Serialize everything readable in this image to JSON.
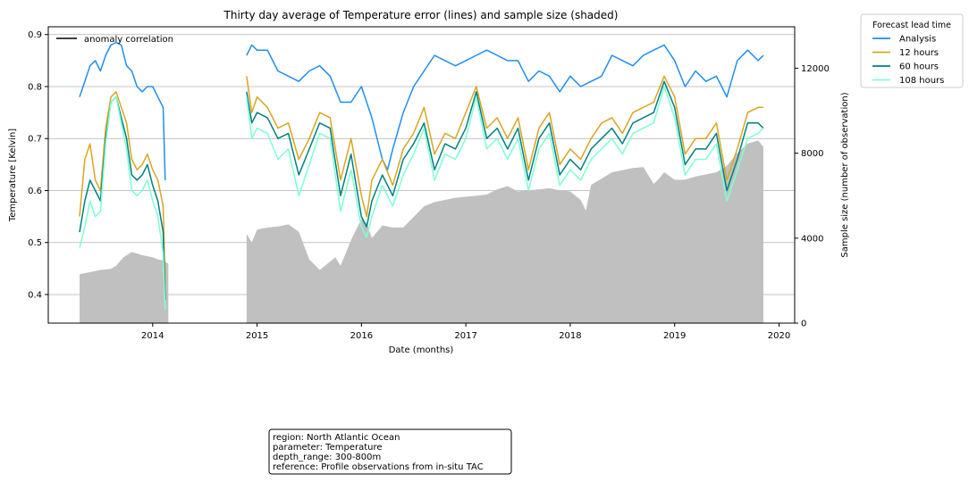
{
  "chart_data": {
    "type": "line",
    "title": "Thirty day average of Temperature error (lines) and sample size (shaded)",
    "xlabel": "Date (months)",
    "ylabel": "Temperature [Kelvin]",
    "y2label": "Sample size (number of observation)",
    "xlim": [
      2013.0,
      2020.15
    ],
    "ylim": [
      0.345,
      0.915
    ],
    "y2lim": [
      0,
      13950
    ],
    "x_ticks": [
      2014,
      2015,
      2016,
      2017,
      2018,
      2019,
      2020
    ],
    "x_tick_labels": [
      "2014",
      "2015",
      "2016",
      "2017",
      "2018",
      "2019",
      "2020"
    ],
    "y_ticks": [
      0.4,
      0.5,
      0.6,
      0.7,
      0.8,
      0.9
    ],
    "y_tick_labels": [
      "0.4",
      "0.5",
      "0.6",
      "0.7",
      "0.8",
      "0.9"
    ],
    "y2_ticks": [
      0,
      4000,
      8000,
      12000
    ],
    "y2_tick_labels": [
      "0",
      "4000",
      "8000",
      "12000"
    ],
    "grid": "horizontal",
    "legend_title": "Forecast lead time",
    "legend_position": "outside-top-right",
    "inner_legend": {
      "label": "anomaly correlation",
      "color": "#000000",
      "position": "top-left"
    },
    "sample_size": {
      "name": "Sample size (shaded)",
      "color": "#c0c0c0",
      "segments": [
        {
          "x": [
            2013.3,
            2013.4,
            2013.5,
            2013.6,
            2013.65,
            2013.72,
            2013.8,
            2013.9,
            2014.0,
            2014.05,
            2014.1,
            2014.15
          ],
          "values": [
            2300,
            2400,
            2500,
            2550,
            2700,
            3100,
            3350,
            3200,
            3100,
            3000,
            2950,
            2800
          ]
        },
        {
          "x": [
            2014.9,
            2014.95,
            2015.0,
            2015.1,
            2015.2,
            2015.3,
            2015.4,
            2015.5,
            2015.6,
            2015.7,
            2015.75,
            2015.8,
            2015.9,
            2016.0,
            2016.05,
            2016.1,
            2016.2,
            2016.3,
            2016.4,
            2016.5,
            2016.6,
            2016.7,
            2016.8,
            2016.9,
            2017.0,
            2017.1,
            2017.2,
            2017.3,
            2017.4,
            2017.5,
            2017.6,
            2017.7,
            2017.8,
            2017.9,
            2018.0,
            2018.1,
            2018.15,
            2018.2,
            2018.3,
            2018.4,
            2018.5,
            2018.6,
            2018.7,
            2018.8,
            2018.85,
            2018.9,
            2019.0,
            2019.1,
            2019.2,
            2019.3,
            2019.4,
            2019.5,
            2019.6,
            2019.7,
            2019.8,
            2019.85
          ],
          "values": [
            4200,
            3800,
            4400,
            4500,
            4550,
            4650,
            4300,
            3000,
            2500,
            2900,
            3100,
            2700,
            3900,
            4900,
            4700,
            4000,
            4600,
            4500,
            4500,
            5000,
            5500,
            5700,
            5800,
            5900,
            5950,
            6000,
            6050,
            6300,
            6450,
            6200,
            6250,
            6300,
            6350,
            6250,
            6200,
            5800,
            5300,
            6500,
            6800,
            7100,
            7200,
            7300,
            7350,
            6550,
            6800,
            7100,
            6750,
            6750,
            6900,
            7000,
            7100,
            7400,
            8000,
            8450,
            8600,
            8300
          ]
        }
      ]
    },
    "series": [
      {
        "name": "Analysis",
        "color": "#1f8ef1",
        "segments": [
          {
            "x": [
              2013.3,
              2013.35,
              2013.4,
              2013.45,
              2013.5,
              2013.55,
              2013.6,
              2013.65,
              2013.7,
              2013.75,
              2013.8,
              2013.85,
              2013.9,
              2013.95,
              2014.0,
              2014.05,
              2014.1,
              2014.12
            ],
            "values": [
              0.78,
              0.81,
              0.84,
              0.85,
              0.83,
              0.86,
              0.88,
              0.885,
              0.88,
              0.84,
              0.83,
              0.8,
              0.79,
              0.8,
              0.8,
              0.78,
              0.76,
              0.62
            ]
          },
          {
            "x": [
              2014.9,
              2014.95,
              2015.0,
              2015.1,
              2015.2,
              2015.3,
              2015.4,
              2015.5,
              2015.6,
              2015.7,
              2015.8,
              2015.9,
              2016.0,
              2016.1,
              2016.2,
              2016.25,
              2016.3,
              2016.4,
              2016.5,
              2016.6,
              2016.7,
              2016.8,
              2016.9,
              2017.0,
              2017.1,
              2017.2,
              2017.3,
              2017.4,
              2017.5,
              2017.6,
              2017.7,
              2017.8,
              2017.9,
              2018.0,
              2018.1,
              2018.2,
              2018.3,
              2018.4,
              2018.5,
              2018.6,
              2018.7,
              2018.8,
              2018.9,
              2019.0,
              2019.1,
              2019.2,
              2019.3,
              2019.4,
              2019.5,
              2019.6,
              2019.7,
              2019.8,
              2019.85
            ],
            "values": [
              0.86,
              0.88,
              0.87,
              0.87,
              0.83,
              0.82,
              0.81,
              0.83,
              0.84,
              0.82,
              0.77,
              0.77,
              0.8,
              0.74,
              0.66,
              0.64,
              0.68,
              0.75,
              0.8,
              0.83,
              0.86,
              0.85,
              0.84,
              0.85,
              0.86,
              0.87,
              0.86,
              0.85,
              0.85,
              0.81,
              0.83,
              0.82,
              0.79,
              0.82,
              0.8,
              0.81,
              0.82,
              0.86,
              0.85,
              0.84,
              0.86,
              0.87,
              0.88,
              0.85,
              0.8,
              0.83,
              0.81,
              0.82,
              0.78,
              0.85,
              0.87,
              0.85,
              0.86
            ]
          }
        ]
      },
      {
        "name": "12 hours",
        "color": "#daa520",
        "segments": [
          {
            "x": [
              2013.3,
              2013.35,
              2013.4,
              2013.45,
              2013.5,
              2013.55,
              2013.6,
              2013.65,
              2013.7,
              2013.75,
              2013.8,
              2013.85,
              2013.9,
              2013.95,
              2014.0,
              2014.05,
              2014.1,
              2014.12
            ],
            "values": [
              0.55,
              0.66,
              0.69,
              0.62,
              0.6,
              0.72,
              0.78,
              0.79,
              0.76,
              0.73,
              0.66,
              0.64,
              0.65,
              0.67,
              0.64,
              0.62,
              0.57,
              0.42
            ]
          },
          {
            "x": [
              2014.9,
              2014.95,
              2015.0,
              2015.1,
              2015.2,
              2015.3,
              2015.4,
              2015.5,
              2015.6,
              2015.7,
              2015.8,
              2015.9,
              2016.0,
              2016.05,
              2016.1,
              2016.2,
              2016.3,
              2016.4,
              2016.5,
              2016.6,
              2016.7,
              2016.8,
              2016.9,
              2017.0,
              2017.1,
              2017.2,
              2017.3,
              2017.4,
              2017.5,
              2017.6,
              2017.7,
              2017.8,
              2017.9,
              2018.0,
              2018.1,
              2018.2,
              2018.3,
              2018.4,
              2018.5,
              2018.6,
              2018.7,
              2018.8,
              2018.9,
              2019.0,
              2019.1,
              2019.2,
              2019.3,
              2019.4,
              2019.5,
              2019.6,
              2019.7,
              2019.8,
              2019.85
            ],
            "values": [
              0.82,
              0.75,
              0.78,
              0.76,
              0.72,
              0.73,
              0.66,
              0.7,
              0.75,
              0.74,
              0.62,
              0.7,
              0.59,
              0.55,
              0.62,
              0.66,
              0.61,
              0.68,
              0.71,
              0.76,
              0.67,
              0.71,
              0.7,
              0.75,
              0.8,
              0.72,
              0.74,
              0.7,
              0.74,
              0.64,
              0.72,
              0.75,
              0.65,
              0.68,
              0.66,
              0.7,
              0.73,
              0.74,
              0.71,
              0.75,
              0.76,
              0.77,
              0.82,
              0.78,
              0.67,
              0.7,
              0.7,
              0.73,
              0.62,
              0.68,
              0.75,
              0.76,
              0.76
            ]
          }
        ]
      },
      {
        "name": "60 hours",
        "color": "#008080",
        "segments": [
          {
            "x": [
              2013.3,
              2013.35,
              2013.4,
              2013.45,
              2013.5,
              2013.55,
              2013.6,
              2013.65,
              2013.7,
              2013.75,
              2013.8,
              2013.85,
              2013.9,
              2013.95,
              2014.0,
              2014.05,
              2014.1,
              2014.12
            ],
            "values": [
              0.52,
              0.58,
              0.62,
              0.6,
              0.58,
              0.7,
              0.77,
              0.78,
              0.74,
              0.7,
              0.63,
              0.62,
              0.63,
              0.65,
              0.61,
              0.58,
              0.52,
              0.39
            ]
          },
          {
            "x": [
              2014.9,
              2014.95,
              2015.0,
              2015.1,
              2015.2,
              2015.3,
              2015.4,
              2015.5,
              2015.6,
              2015.7,
              2015.8,
              2015.9,
              2016.0,
              2016.05,
              2016.1,
              2016.2,
              2016.3,
              2016.4,
              2016.5,
              2016.6,
              2016.7,
              2016.8,
              2016.9,
              2017.0,
              2017.1,
              2017.2,
              2017.3,
              2017.4,
              2017.5,
              2017.6,
              2017.7,
              2017.8,
              2017.9,
              2018.0,
              2018.1,
              2018.2,
              2018.3,
              2018.4,
              2018.5,
              2018.6,
              2018.7,
              2018.8,
              2018.9,
              2019.0,
              2019.1,
              2019.2,
              2019.3,
              2019.4,
              2019.5,
              2019.6,
              2019.7,
              2019.8,
              2019.85
            ],
            "values": [
              0.79,
              0.73,
              0.75,
              0.74,
              0.7,
              0.71,
              0.63,
              0.68,
              0.73,
              0.72,
              0.59,
              0.67,
              0.55,
              0.53,
              0.58,
              0.63,
              0.59,
              0.66,
              0.69,
              0.73,
              0.64,
              0.69,
              0.68,
              0.72,
              0.79,
              0.7,
              0.72,
              0.68,
              0.72,
              0.62,
              0.7,
              0.73,
              0.63,
              0.66,
              0.64,
              0.68,
              0.7,
              0.72,
              0.69,
              0.73,
              0.74,
              0.75,
              0.81,
              0.76,
              0.65,
              0.68,
              0.68,
              0.71,
              0.6,
              0.66,
              0.73,
              0.73,
              0.72
            ]
          }
        ]
      },
      {
        "name": "108 hours",
        "color": "#7fffd4",
        "segments": [
          {
            "x": [
              2013.3,
              2013.35,
              2013.4,
              2013.45,
              2013.5,
              2013.55,
              2013.6,
              2013.65,
              2013.7,
              2013.75,
              2013.8,
              2013.85,
              2013.9,
              2013.95,
              2014.0,
              2014.05,
              2014.1,
              2014.12
            ],
            "values": [
              0.49,
              0.53,
              0.58,
              0.55,
              0.56,
              0.69,
              0.77,
              0.78,
              0.73,
              0.68,
              0.6,
              0.59,
              0.6,
              0.62,
              0.58,
              0.55,
              0.48,
              0.37
            ]
          },
          {
            "x": [
              2014.9,
              2014.95,
              2015.0,
              2015.1,
              2015.2,
              2015.3,
              2015.4,
              2015.5,
              2015.6,
              2015.7,
              2015.8,
              2015.9,
              2016.0,
              2016.05,
              2016.1,
              2016.2,
              2016.3,
              2016.4,
              2016.5,
              2016.6,
              2016.7,
              2016.8,
              2016.9,
              2017.0,
              2017.1,
              2017.2,
              2017.3,
              2017.4,
              2017.5,
              2017.6,
              2017.7,
              2017.8,
              2017.9,
              2018.0,
              2018.1,
              2018.2,
              2018.3,
              2018.4,
              2018.5,
              2018.6,
              2018.7,
              2018.8,
              2018.9,
              2019.0,
              2019.1,
              2019.2,
              2019.3,
              2019.4,
              2019.5,
              2019.6,
              2019.7,
              2019.8,
              2019.85
            ],
            "values": [
              0.78,
              0.7,
              0.72,
              0.71,
              0.66,
              0.68,
              0.59,
              0.65,
              0.71,
              0.7,
              0.56,
              0.64,
              0.53,
              0.51,
              0.55,
              0.61,
              0.57,
              0.63,
              0.67,
              0.72,
              0.62,
              0.67,
              0.66,
              0.7,
              0.78,
              0.68,
              0.7,
              0.66,
              0.7,
              0.6,
              0.68,
              0.71,
              0.61,
              0.64,
              0.62,
              0.66,
              0.68,
              0.7,
              0.67,
              0.71,
              0.72,
              0.73,
              0.8,
              0.74,
              0.63,
              0.66,
              0.66,
              0.69,
              0.58,
              0.64,
              0.7,
              0.71,
              0.72
            ]
          }
        ]
      }
    ]
  },
  "info_box": {
    "lines": [
      "region: North Atlantic Ocean",
      "parameter: Temperature",
      "depth_range: 300-800m",
      "reference: Profile observations from in-situ TAC"
    ]
  }
}
